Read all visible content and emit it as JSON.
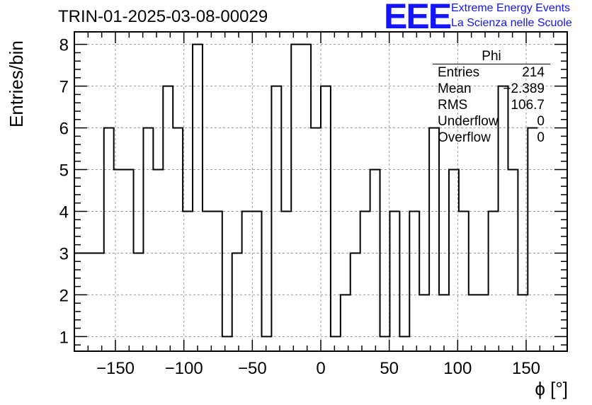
{
  "header": {
    "run_title": "TRIN-01-2025-03-08-00029",
    "logo_text": "EEE",
    "logo_line1": "Extreme Energy Events",
    "logo_line2": "La Scienza nelle Scuole"
  },
  "stats_box": {
    "title": "Phi",
    "rows": [
      {
        "key": "Entries",
        "value": "214"
      },
      {
        "key": "Mean",
        "value": "−2.389"
      },
      {
        "key": "RMS",
        "value": "106.7"
      },
      {
        "key": "Underflow",
        "value": "0"
      },
      {
        "key": "Overflow",
        "value": "0"
      }
    ]
  },
  "colors": {
    "line": "#000000",
    "grid": "#9a9a9a",
    "logo": "#1414ff"
  },
  "chart_data": {
    "type": "histogram",
    "title": "TRIN-01-2025-03-08-00029",
    "xlabel": "ϕ [°]",
    "ylabel": "Entries/bin",
    "xlim": [
      -180,
      180
    ],
    "ylim": [
      0.65,
      8.3
    ],
    "bin_width": 7.2,
    "bin_edges_start": -180,
    "bin_contents": [
      3,
      3,
      3,
      6,
      5,
      5,
      3,
      6,
      5,
      7,
      6,
      4,
      8,
      4,
      4,
      1,
      3,
      4,
      4,
      1,
      7,
      4,
      8,
      8,
      6,
      7,
      1,
      2,
      3,
      4,
      5,
      1,
      4,
      1,
      4,
      2,
      6,
      2,
      5,
      4,
      2,
      2,
      4,
      7,
      5,
      2,
      6
    ],
    "x_ticks": [
      -150,
      -100,
      -50,
      0,
      50,
      100,
      150
    ],
    "x_tick_labels": [
      "−150",
      "−100",
      "−50",
      "0",
      "50",
      "100",
      "150"
    ],
    "y_ticks": [
      1,
      2,
      3,
      4,
      5,
      6,
      7,
      8
    ],
    "y_tick_labels": [
      "1",
      "2",
      "3",
      "4",
      "5",
      "6",
      "7",
      "8"
    ],
    "grid": true
  }
}
